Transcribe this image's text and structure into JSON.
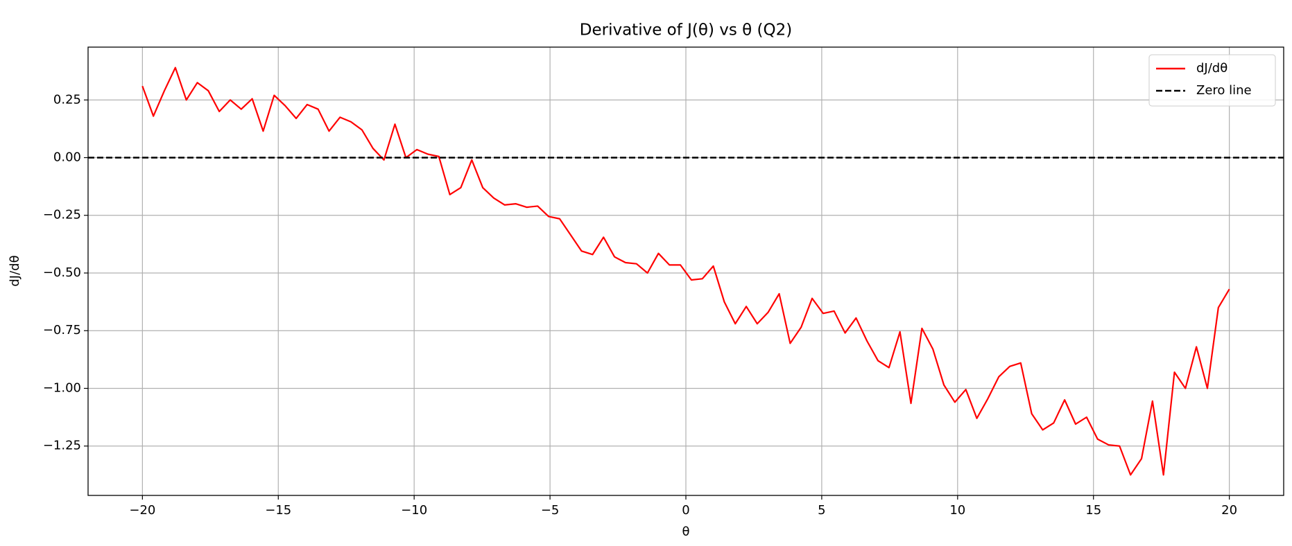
{
  "chart_data": {
    "type": "line",
    "title": "Derivative of J(θ) vs θ (Q2)",
    "xlabel": "θ",
    "ylabel": "dJ/dθ",
    "x": [
      -20,
      -19.596,
      -19.192,
      -18.788,
      -18.384,
      -17.98,
      -17.576,
      -17.172,
      -16.768,
      -16.364,
      -15.96,
      -15.556,
      -15.152,
      -14.747,
      -14.343,
      -13.939,
      -13.535,
      -13.131,
      -12.727,
      -12.323,
      -11.919,
      -11.515,
      -11.111,
      -10.707,
      -10.303,
      -9.899,
      -9.495,
      -9.091,
      -8.687,
      -8.283,
      -7.879,
      -7.475,
      -7.071,
      -6.667,
      -6.263,
      -5.859,
      -5.455,
      -5.051,
      -4.646,
      -4.242,
      -3.838,
      -3.434,
      -3.03,
      -2.626,
      -2.222,
      -1.818,
      -1.414,
      -1.01,
      -0.606,
      -0.202,
      0.202,
      0.606,
      1.01,
      1.414,
      1.818,
      2.222,
      2.626,
      3.03,
      3.434,
      3.838,
      4.242,
      4.646,
      5.051,
      5.455,
      5.859,
      6.263,
      6.667,
      7.071,
      7.475,
      7.879,
      8.283,
      8.687,
      9.091,
      9.495,
      9.899,
      10.303,
      10.707,
      11.111,
      11.515,
      11.919,
      12.323,
      12.727,
      13.131,
      13.535,
      13.939,
      14.343,
      14.747,
      15.152,
      15.556,
      15.96,
      16.364,
      16.768,
      17.172,
      17.576,
      17.98,
      18.384,
      18.788,
      19.192,
      19.596,
      20
    ],
    "series": [
      {
        "name": "dJ/dθ",
        "color": "#ff0000",
        "style": "solid",
        "values": [
          0.31,
          0.18,
          0.29,
          0.39,
          0.25,
          0.325,
          0.29,
          0.2,
          0.25,
          0.21,
          0.255,
          0.115,
          0.27,
          0.225,
          0.17,
          0.23,
          0.21,
          0.115,
          0.175,
          0.155,
          0.12,
          0.04,
          -0.01,
          0.145,
          0.0,
          0.035,
          0.015,
          0.005,
          -0.16,
          -0.13,
          -0.01,
          -0.13,
          -0.175,
          -0.205,
          -0.2,
          -0.215,
          -0.21,
          -0.255,
          -0.265,
          -0.335,
          -0.405,
          -0.42,
          -0.345,
          -0.43,
          -0.455,
          -0.46,
          -0.5,
          -0.415,
          -0.465,
          -0.465,
          -0.53,
          -0.525,
          -0.47,
          -0.625,
          -0.72,
          -0.645,
          -0.72,
          -0.67,
          -0.59,
          -0.805,
          -0.735,
          -0.61,
          -0.675,
          -0.665,
          -0.76,
          -0.695,
          -0.795,
          -0.88,
          -0.91,
          -0.755,
          -1.065,
          -0.74,
          -0.83,
          -0.985,
          -1.06,
          -1.005,
          -1.13,
          -1.045,
          -0.95,
          -0.905,
          -0.89,
          -1.11,
          -1.18,
          -1.15,
          -1.05,
          -1.155,
          -1.125,
          -1.22,
          -1.245,
          -1.25,
          -1.375,
          -1.305,
          -1.055,
          -1.375,
          -0.93,
          -1.0,
          -0.82,
          -1.0,
          -0.65,
          -0.57
        ]
      },
      {
        "name": "Zero line",
        "color": "#000000",
        "style": "dashed",
        "hline": 0
      }
    ],
    "xlim": [
      -22,
      22
    ],
    "xticks": [
      -20,
      -15,
      -10,
      -5,
      0,
      5,
      10,
      15,
      20
    ],
    "ylim": [
      -1.464,
      0.479
    ],
    "yticks": [
      {
        "value": -1.25,
        "label": "−1.25"
      },
      {
        "value": -1,
        "label": "−1.00"
      },
      {
        "value": -0.75,
        "label": "−0.75"
      },
      {
        "value": -0.5,
        "label": "−0.50"
      },
      {
        "value": -0.25,
        "label": "−0.25"
      },
      {
        "value": 0,
        "label": "0.00"
      },
      {
        "value": 0.25,
        "label": "0.25"
      }
    ],
    "xtick_labels": [
      "−20",
      "−15",
      "−10",
      "−5",
      "0",
      "5",
      "10",
      "15",
      "20"
    ],
    "grid": true,
    "legend": "upper right"
  }
}
